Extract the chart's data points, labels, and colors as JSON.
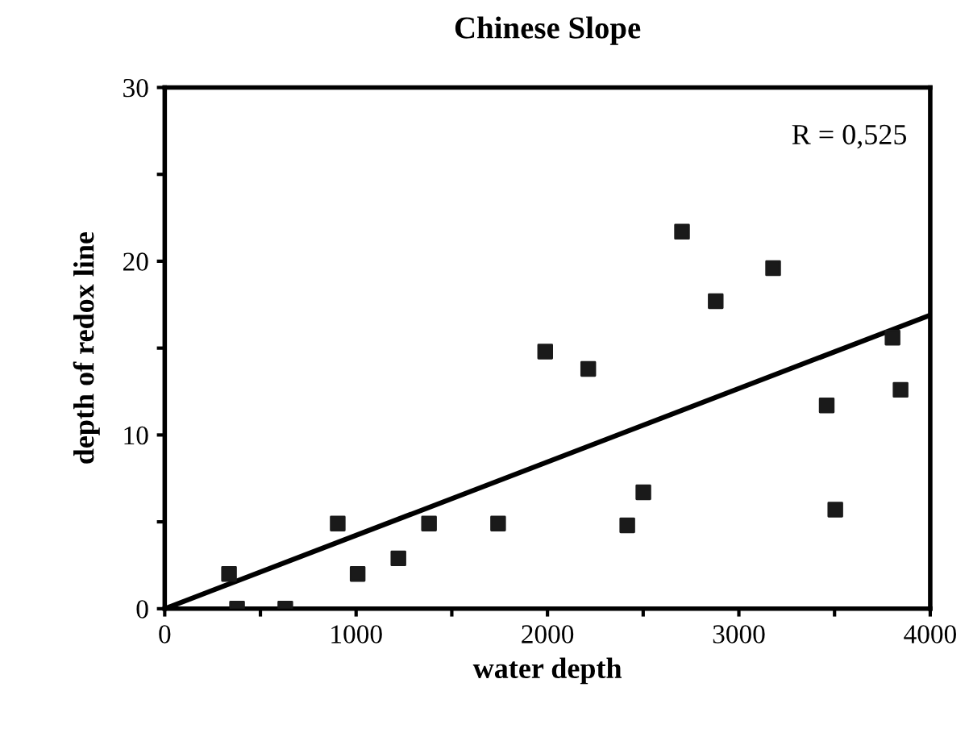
{
  "chart_data": {
    "type": "scatter",
    "title": "Chinese Slope",
    "xlabel": "water depth",
    "ylabel": "depth of redox line",
    "annotations": [
      "R = 0,525"
    ],
    "marker": "square",
    "grid": false,
    "legend": false,
    "xlim": [
      0,
      4000
    ],
    "ylim": [
      0,
      30
    ],
    "xticks": [
      0,
      {
        "value": 500,
        "label": null
      },
      1000,
      {
        "value": 1500,
        "label": null
      },
      2000,
      {
        "value": 2500,
        "label": null
      },
      3000,
      {
        "value": 3500,
        "label": null
      },
      4000
    ],
    "yticks": [
      0,
      {
        "value": 5,
        "label": null
      },
      10,
      {
        "value": 15,
        "label": null
      },
      20,
      {
        "value": 25,
        "label": null
      },
      30
    ],
    "series": [
      {
        "color": "#1a1a1a",
        "x": [
          336,
          378,
          630,
          904,
          1008,
          1221,
          1381,
          1742,
          1988,
          2213,
          2417,
          2501,
          2703,
          2879,
          3179,
          3459,
          3504,
          3803,
          3845
        ],
        "values": [
          2.0,
          0,
          0,
          4.9,
          2.0,
          2.9,
          4.9,
          4.9,
          14.8,
          13.8,
          4.8,
          6.7,
          21.7,
          17.7,
          19.6,
          11.7,
          5.7,
          15.6,
          12.6
        ]
      },
      {
        "type": "line",
        "color": "#000000",
        "line_style": "solid",
        "marker": "none",
        "x": [
          0,
          4000
        ],
        "values": [
          0,
          16.9
        ]
      }
    ]
  }
}
